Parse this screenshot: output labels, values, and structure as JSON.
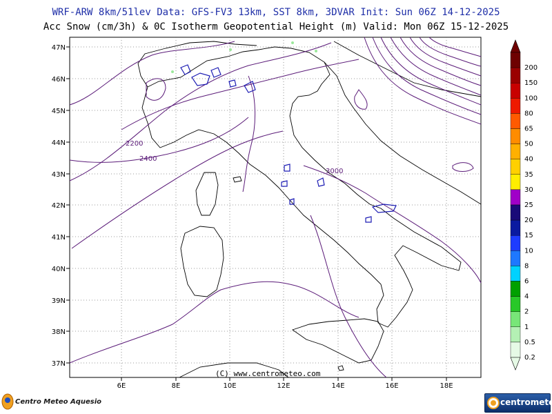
{
  "header": {
    "line1": "WRF-ARW 8km/51lev  Data: GFS-FV3 13km, SST 8km, 3DVAR  Init: Sun 06Z 14-12-2025",
    "line2": "Acc Snow (cm/3h) & 0C Isotherm Geopotential Height (m)  Valid: Mon 06Z 15-12-2025"
  },
  "map": {
    "lat_labels": [
      "47N",
      "46N",
      "45N",
      "44N",
      "43N",
      "42N",
      "41N",
      "40N",
      "39N",
      "38N",
      "37N"
    ],
    "lon_labels": [
      "6E",
      "8E",
      "10E",
      "12E",
      "14E",
      "16E",
      "18E"
    ],
    "contour_labels": [
      "2200",
      "2400",
      "3000"
    ],
    "watermark": "(C) www.centrometeo.com",
    "contour_color": "#5a1a78",
    "coast_color": "#000000",
    "snow_color": "#1c1cb4"
  },
  "legend": {
    "levels": [
      {
        "label": "200",
        "color": "#6e0000"
      },
      {
        "label": "150",
        "color": "#9a0000"
      },
      {
        "label": "100",
        "color": "#c80000"
      },
      {
        "label": "80",
        "color": "#ee1a00"
      },
      {
        "label": "65",
        "color": "#ff5a00"
      },
      {
        "label": "50",
        "color": "#ff8c00"
      },
      {
        "label": "40",
        "color": "#ffb000"
      },
      {
        "label": "35",
        "color": "#ffd000"
      },
      {
        "label": "30",
        "color": "#ffee00"
      },
      {
        "label": "25",
        "color": "#a000c8"
      },
      {
        "label": "20",
        "color": "#1a0a78"
      },
      {
        "label": "15",
        "color": "#0a1aa0"
      },
      {
        "label": "10",
        "color": "#1e3cff"
      },
      {
        "label": "8",
        "color": "#1e78ff"
      },
      {
        "label": "6",
        "color": "#00d2ff"
      },
      {
        "label": "4",
        "color": "#00a000"
      },
      {
        "label": "2",
        "color": "#28c828"
      },
      {
        "label": "1",
        "color": "#78e678"
      },
      {
        "label": "0.5",
        "color": "#b4f0b4"
      },
      {
        "label": "0.2",
        "color": "#e6fae6"
      }
    ]
  },
  "logos": {
    "left": "Centro Meteo Aquesio",
    "right": "centrometeo"
  }
}
